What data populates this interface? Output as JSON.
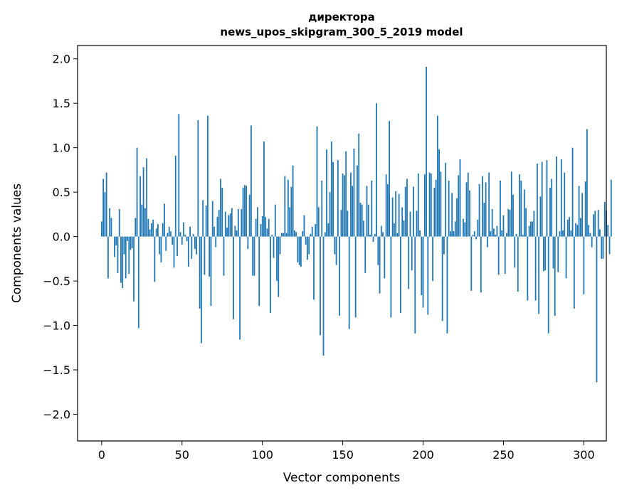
{
  "chart_data": {
    "type": "bar",
    "title_lines": [
      "директора",
      "news_upos_skipgram_300_5_2019 model"
    ],
    "xlabel": "Vector components",
    "ylabel": "Components values",
    "xlim": [
      -15,
      314
    ],
    "ylim": [
      -2.3,
      2.15
    ],
    "x_ticks": [
      0,
      50,
      100,
      150,
      200,
      250,
      300
    ],
    "y_ticks": [
      -2.0,
      -1.5,
      -1.0,
      -0.5,
      0.0,
      0.5,
      1.0,
      1.5,
      2.0
    ],
    "y_tick_labels": [
      "−2.0",
      "−1.5",
      "−1.0",
      "−0.5",
      "0.0",
      "0.5",
      "1.0",
      "1.5",
      "2.0"
    ],
    "grid": false,
    "bar_color": "#1f77b4",
    "values": [
      0.17,
      0.65,
      0.5,
      0.72,
      -0.47,
      0.32,
      0.21,
      0.0,
      -0.23,
      -0.1,
      -0.41,
      0.31,
      -0.52,
      -0.58,
      -0.2,
      -0.47,
      -0.05,
      -0.42,
      -0.15,
      -0.13,
      -0.73,
      0.21,
      1.0,
      -1.03,
      0.68,
      0.36,
      0.78,
      0.32,
      0.88,
      0.2,
      0.08,
      0.15,
      0.19,
      -0.51,
      0.09,
      0.14,
      -0.2,
      -0.29,
      0.15,
      0.37,
      -0.16,
      0.04,
      0.11,
      0.06,
      -0.09,
      -0.35,
      0.91,
      -0.22,
      1.38,
      0.05,
      -0.09,
      0.16,
      0.02,
      -0.05,
      -0.34,
      0.11,
      -0.25,
      0.03,
      -0.14,
      -0.2,
      1.31,
      -0.81,
      -1.2,
      0.41,
      -0.43,
      0.35,
      1.36,
      -0.45,
      -0.78,
      0.4,
      0.11,
      -0.12,
      0.22,
      0.3,
      0.65,
      0.55,
      -0.44,
      0.28,
      0.1,
      0.24,
      0.26,
      0.32,
      -0.93,
      0.12,
      0.07,
      0.31,
      -1.16,
      0.31,
      0.55,
      0.58,
      0.57,
      -0.14,
      0.47,
      1.25,
      -0.44,
      -0.44,
      0.2,
      0.33,
      -0.78,
      0.14,
      0.23,
      1.07,
      0.22,
      0.09,
      0.2,
      -0.86,
      0.02,
      -0.24,
      0.36,
      -0.5,
      -0.68,
      -0.2,
      0.04,
      0.04,
      0.68,
      0.04,
      0.64,
      0.33,
      0.56,
      0.8,
      0.07,
      0.05,
      -0.29,
      -0.32,
      -0.34,
      0.06,
      0.24,
      -0.09,
      -0.26,
      -0.2,
      0.03,
      0.11,
      -0.71,
      0.14,
      1.24,
      0.33,
      -1.11,
      0.63,
      -1.34,
      0.05,
      0.98,
      0.15,
      0.5,
      1.07,
      0.84,
      -0.2,
      -0.32,
      0.86,
      -0.89,
      0.3,
      0.71,
      0.69,
      0.96,
      0.29,
      -1.04,
      0.72,
      0.57,
      0.99,
      -0.91,
      0.8,
      1.16,
      0.38,
      0.36,
      0.18,
      -0.41,
      0.57,
      0.36,
      0.02,
      0.63,
      -0.06,
      0.03,
      1.5,
      -0.32,
      -0.64,
      0.12,
      0.05,
      -0.47,
      0.7,
      0.59,
      1.3,
      -0.91,
      0.44,
      0.15,
      0.51,
      0.04,
      0.48,
      -0.86,
      0.33,
      0.18,
      0.56,
      0.65,
      -0.59,
      0.28,
      -0.38,
      0.56,
      -1.09,
      0.29,
      0.71,
      0.07,
      -0.66,
      -0.8,
      0.7,
      1.91,
      -0.88,
      0.72,
      0.71,
      -0.5,
      0.55,
      0.64,
      1.36,
      0.98,
      0.73,
      -0.95,
      -0.2,
      0.83,
      -1.09,
      0.63,
      0.06,
      0.49,
      0.06,
      0.17,
      0.43,
      0.69,
      0.87,
      0.0,
      0.2,
      0.16,
      0.61,
      0.72,
      0.52,
      -0.61,
      0.02,
      0.06,
      -0.03,
      0.19,
      0.59,
      -0.63,
      0.68,
      0.38,
      0.61,
      -0.12,
      0.72,
      0.06,
      0.31,
      0.09,
      0.02,
      0.12,
      -0.43,
      0.63,
      0.07,
      0.24,
      -0.42,
      0.04,
      0.31,
      0.3,
      0.73,
      0.47,
      -0.35,
      0.03,
      -0.62,
      0.7,
      0.63,
      0.02,
      0.53,
      0.32,
      -0.72,
      0.12,
      0.17,
      0.17,
      0.29,
      -0.72,
      0.82,
      -0.87,
      0.45,
      0.84,
      -0.39,
      -0.38,
      0.86,
      -1.09,
      0.55,
      0.65,
      -0.36,
      -0.89,
      0.9,
      -0.4,
      0.06,
      0.87,
      0.07,
      0.72,
      -0.47,
      0.19,
      0.22,
      0.07,
      1.0,
      -0.81,
      0.15,
      0.13,
      0.57,
      0.21,
      0.49,
      -0.65,
      0.62,
      1.21,
      0.13,
      0.04,
      -0.12,
      0.25,
      0.29,
      -1.64,
      0.3,
      0.08,
      -0.25,
      -0.25,
      0.39,
      0.29,
      0.13,
      -0.2,
      0.64
    ]
  }
}
